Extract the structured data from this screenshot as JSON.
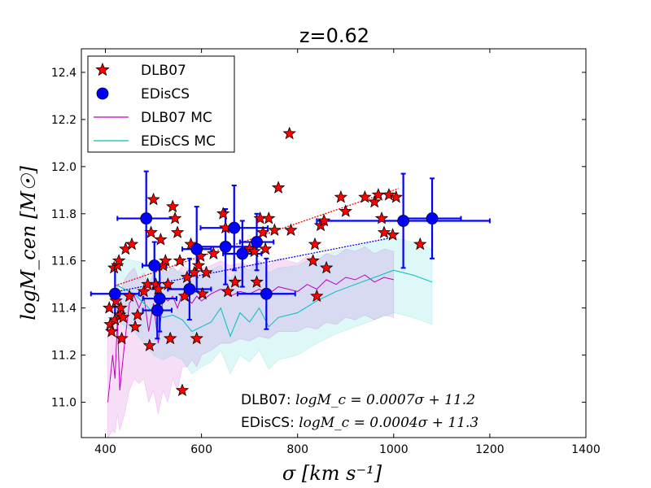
{
  "chart_data": {
    "type": "scatter",
    "title": "z=0.62",
    "xlabel": "σ    [km s⁻¹]",
    "ylabel": "logM_cen   [M☉]",
    "xlim": [
      350,
      1400
    ],
    "ylim": [
      10.85,
      12.5
    ],
    "xticks": [
      400,
      600,
      800,
      1000,
      1200,
      1400
    ],
    "yticks": [
      11.0,
      11.2,
      11.4,
      11.6,
      11.8,
      12.0,
      12.2,
      12.4
    ],
    "legend": {
      "placement": "top-left",
      "entries": [
        {
          "label": "DLB07",
          "marker": "star",
          "color": "#ff0000"
        },
        {
          "label": "EDisCS",
          "marker": "circle",
          "color": "#0000ff"
        },
        {
          "label": "DLB07 MC",
          "marker": "line",
          "color": "#bf00bf"
        },
        {
          "label": "EDisCS MC",
          "marker": "line",
          "color": "#00bfbf"
        }
      ]
    },
    "annotations": [
      {
        "label": "DLB07: ",
        "formula": "logM_c = 0.0007σ + 11.2"
      },
      {
        "label": "EDisCS: ",
        "formula": "logM_c = 0.0004σ + 11.3"
      }
    ],
    "series": [
      {
        "name": "DLB07",
        "color": "#ff0000",
        "points": [
          [
            408,
            11.4
          ],
          [
            410,
            11.33
          ],
          [
            413,
            11.3
          ],
          [
            418,
            11.57
          ],
          [
            420,
            11.35
          ],
          [
            422,
            11.43
          ],
          [
            425,
            11.58
          ],
          [
            428,
            11.6
          ],
          [
            430,
            11.37
          ],
          [
            432,
            11.4
          ],
          [
            434,
            11.27
          ],
          [
            437,
            11.36
          ],
          [
            442,
            11.65
          ],
          [
            450,
            11.45
          ],
          [
            455,
            11.67
          ],
          [
            462,
            11.32
          ],
          [
            467,
            11.37
          ],
          [
            480,
            11.47
          ],
          [
            488,
            11.5
          ],
          [
            492,
            11.24
          ],
          [
            495,
            11.72
          ],
          [
            500,
            11.86
          ],
          [
            505,
            11.5
          ],
          [
            510,
            11.48
          ],
          [
            515,
            11.69
          ],
          [
            520,
            11.58
          ],
          [
            525,
            11.6
          ],
          [
            530,
            11.5
          ],
          [
            535,
            11.27
          ],
          [
            540,
            11.83
          ],
          [
            545,
            11.78
          ],
          [
            550,
            11.72
          ],
          [
            555,
            11.6
          ],
          [
            560,
            11.05
          ],
          [
            565,
            11.45
          ],
          [
            570,
            11.53
          ],
          [
            578,
            11.67
          ],
          [
            585,
            11.55
          ],
          [
            590,
            11.27
          ],
          [
            594,
            11.58
          ],
          [
            598,
            11.62
          ],
          [
            602,
            11.46
          ],
          [
            610,
            11.55
          ],
          [
            625,
            11.63
          ],
          [
            645,
            11.8
          ],
          [
            650,
            11.74
          ],
          [
            655,
            11.47
          ],
          [
            670,
            11.51
          ],
          [
            700,
            11.65
          ],
          [
            710,
            11.64
          ],
          [
            715,
            11.51
          ],
          [
            722,
            11.78
          ],
          [
            728,
            11.72
          ],
          [
            733,
            11.65
          ],
          [
            740,
            11.78
          ],
          [
            752,
            11.73
          ],
          [
            760,
            11.91
          ],
          [
            783,
            12.14
          ],
          [
            786,
            11.73
          ],
          [
            832,
            11.6
          ],
          [
            836,
            11.67
          ],
          [
            840,
            11.45
          ],
          [
            848,
            11.75
          ],
          [
            855,
            11.77
          ],
          [
            860,
            11.57
          ],
          [
            890,
            11.87
          ],
          [
            900,
            11.81
          ],
          [
            940,
            11.87
          ],
          [
            960,
            11.85
          ],
          [
            968,
            11.88
          ],
          [
            975,
            11.78
          ],
          [
            980,
            11.72
          ],
          [
            990,
            11.88
          ],
          [
            998,
            11.71
          ],
          [
            1005,
            11.87
          ],
          [
            1055,
            11.67
          ]
        ]
      },
      {
        "name": "EDisCS",
        "color": "#0000ff",
        "points": [
          {
            "x": 420,
            "y": 11.46,
            "xerr": 50,
            "yerr": 0.12
          },
          {
            "x": 485,
            "y": 11.78,
            "xerr": 60,
            "yerr": 0.2
          },
          {
            "x": 502,
            "y": 11.58,
            "xerr": 25,
            "yerr": 0.1
          },
          {
            "x": 508,
            "y": 11.39,
            "xerr": 30,
            "yerr": 0.12
          },
          {
            "x": 513,
            "y": 11.44,
            "xerr": 35,
            "yerr": 0.14
          },
          {
            "x": 575,
            "y": 11.48,
            "xerr": 45,
            "yerr": 0.13
          },
          {
            "x": 590,
            "y": 11.65,
            "xerr": 30,
            "yerr": 0.18
          },
          {
            "x": 650,
            "y": 11.66,
            "xerr": 60,
            "yerr": 0.16
          },
          {
            "x": 668,
            "y": 11.74,
            "xerr": 70,
            "yerr": 0.18
          },
          {
            "x": 685,
            "y": 11.63,
            "xerr": 40,
            "yerr": 0.14
          },
          {
            "x": 715,
            "y": 11.68,
            "xerr": 35,
            "yerr": 0.12
          },
          {
            "x": 735,
            "y": 11.46,
            "xerr": 60,
            "yerr": 0.15
          },
          {
            "x": 1020,
            "y": 11.77,
            "xerr": 180,
            "yerr": 0.2
          },
          {
            "x": 1080,
            "y": 11.78,
            "xerr": 60,
            "yerr": 0.17
          }
        ]
      },
      {
        "name": "DLB07 MC",
        "color": "#bf00bf",
        "x": [
          405,
          415,
          420,
          425,
          430,
          440,
          450,
          460,
          470,
          480,
          490,
          500,
          510,
          520,
          530,
          540,
          550,
          560,
          570,
          580,
          590,
          600,
          620,
          640,
          660,
          680,
          700,
          720,
          740,
          760,
          780,
          800,
          820,
          840,
          860,
          880,
          900,
          920,
          940,
          960,
          980,
          1000
        ],
        "y": [
          11.0,
          11.2,
          11.1,
          11.35,
          11.05,
          11.25,
          11.42,
          11.45,
          11.4,
          11.45,
          11.3,
          11.42,
          11.25,
          11.45,
          11.43,
          11.45,
          11.4,
          11.46,
          11.44,
          11.42,
          11.45,
          11.43,
          11.46,
          11.48,
          11.45,
          11.47,
          11.46,
          11.48,
          11.46,
          11.49,
          11.48,
          11.47,
          11.5,
          11.48,
          11.52,
          11.5,
          11.53,
          11.52,
          11.54,
          11.51,
          11.53,
          11.52
        ],
        "band_upper": [
          11.3,
          11.4,
          11.45,
          11.5,
          11.45,
          11.52,
          11.55,
          11.57,
          11.52,
          11.55,
          11.5,
          11.55,
          11.48,
          11.56,
          11.55,
          11.58,
          11.55,
          11.58,
          11.57,
          11.56,
          11.58,
          11.57,
          11.58,
          11.6,
          11.58,
          11.59,
          11.58,
          11.6,
          11.58,
          11.61,
          11.6,
          11.59,
          11.62,
          11.6,
          11.63,
          11.62,
          11.65,
          11.64,
          11.66,
          11.63,
          11.65,
          11.64
        ],
        "band_lower": [
          10.85,
          10.88,
          10.87,
          10.95,
          10.88,
          10.95,
          11.05,
          11.1,
          11.08,
          11.1,
          11.0,
          11.05,
          10.95,
          11.05,
          11.0,
          11.1,
          11.05,
          11.15,
          11.15,
          11.18,
          11.15,
          11.2,
          11.22,
          11.25,
          11.25,
          11.27,
          11.26,
          11.28,
          11.27,
          11.3,
          11.3,
          11.3,
          11.32,
          11.31,
          11.34,
          11.33,
          11.36,
          11.35,
          11.37,
          11.35,
          11.37,
          11.36
        ]
      },
      {
        "name": "EDisCS MC",
        "color": "#00bfbf",
        "x": [
          420,
          460,
          500,
          520,
          540,
          560,
          580,
          600,
          620,
          640,
          660,
          680,
          700,
          720,
          740,
          760,
          800,
          840,
          880,
          920,
          960,
          1000,
          1040,
          1080
        ],
        "y": [
          11.5,
          11.46,
          11.38,
          11.36,
          11.37,
          11.35,
          11.3,
          11.32,
          11.34,
          11.4,
          11.28,
          11.38,
          11.34,
          11.4,
          11.32,
          11.36,
          11.38,
          11.43,
          11.47,
          11.5,
          11.53,
          11.56,
          11.54,
          11.51
        ],
        "band_upper": [
          11.62,
          11.6,
          11.58,
          11.56,
          11.57,
          11.55,
          11.52,
          11.54,
          11.56,
          11.58,
          11.52,
          11.58,
          11.56,
          11.6,
          11.55,
          11.57,
          11.58,
          11.62,
          11.64,
          11.66,
          11.68,
          11.7,
          11.68,
          11.65
        ],
        "band_lower": [
          11.35,
          11.3,
          11.2,
          11.18,
          11.2,
          11.18,
          11.12,
          11.15,
          11.17,
          11.22,
          11.12,
          11.2,
          11.17,
          11.22,
          11.14,
          11.18,
          11.2,
          11.25,
          11.29,
          11.32,
          11.35,
          11.38,
          11.36,
          11.33
        ]
      }
    ],
    "fits": [
      {
        "name": "DLB07 fit",
        "color": "#ff0000",
        "slope": 0.0007,
        "intercept": 11.2,
        "x_range": [
          420,
          1010
        ]
      },
      {
        "name": "EDisCS fit",
        "color": "#0000ff",
        "slope": 0.0004,
        "intercept": 11.3,
        "x_range": [
          420,
          1000
        ]
      }
    ]
  }
}
